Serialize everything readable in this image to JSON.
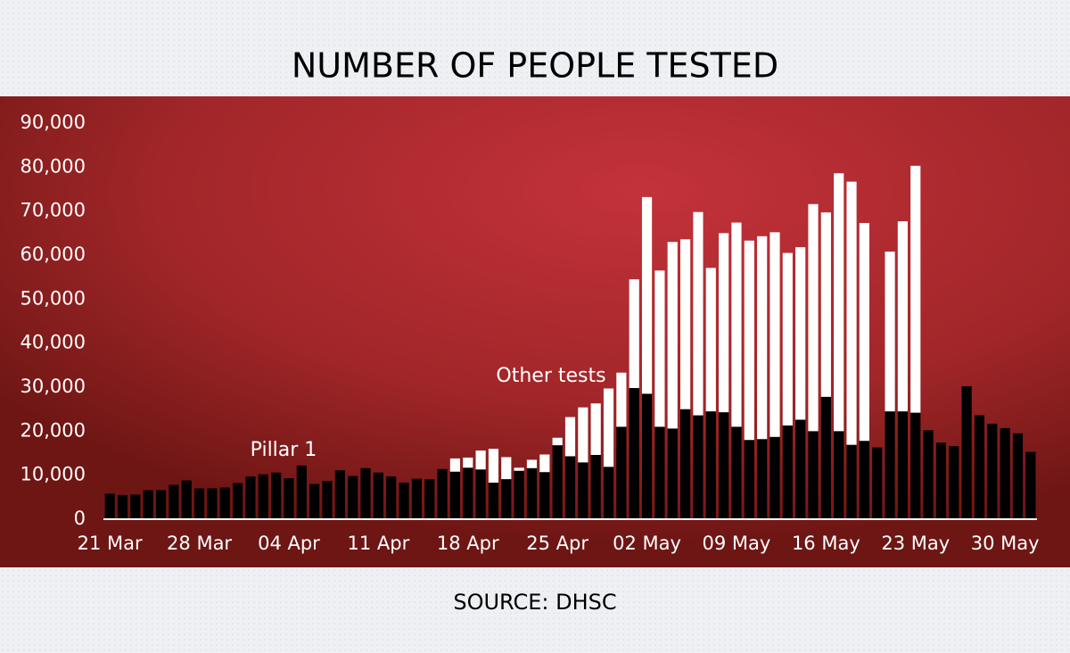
{
  "chart_data": {
    "type": "stacked_bar",
    "title": "NUMBER OF PEOPLE TESTED",
    "source": "SOURCE: DHSC",
    "categories": [
      "21 Mar",
      null,
      null,
      null,
      null,
      null,
      null,
      "28 Mar",
      null,
      null,
      null,
      null,
      null,
      null,
      "04 Apr",
      null,
      null,
      null,
      null,
      null,
      null,
      "11 Apr",
      null,
      null,
      null,
      null,
      null,
      null,
      "18 Apr",
      null,
      null,
      null,
      null,
      null,
      null,
      "25 Apr",
      null,
      null,
      null,
      null,
      null,
      null,
      "02 May",
      null,
      null,
      null,
      null,
      null,
      null,
      "09 May",
      null,
      null,
      null,
      null,
      null,
      null,
      "16 May",
      null,
      null,
      null,
      null,
      null,
      null,
      "23 May",
      null,
      null,
      null,
      null,
      null,
      null,
      "30 May",
      null,
      null
    ],
    "series": [
      {
        "name": "Pillar 1",
        "color": "#000000",
        "values": [
          5800,
          5500,
          5600,
          6600,
          6600,
          7800,
          8800,
          7000,
          7000,
          7200,
          8200,
          9700,
          10200,
          10600,
          9300,
          12200,
          8000,
          8700,
          11100,
          9800,
          11600,
          10600,
          9700,
          8300,
          9200,
          9100,
          11400,
          10800,
          11700,
          11300,
          8300,
          9100,
          11000,
          11600,
          10700,
          16800,
          14300,
          12900,
          14600,
          11900,
          21000,
          29800,
          28500,
          21000,
          20600,
          25000,
          23600,
          24500,
          24300,
          21000,
          18000,
          18200,
          18700,
          21300,
          22600,
          20000,
          27800,
          20000,
          16900,
          17800,
          16300,
          24500,
          24500,
          24200,
          20200,
          17400,
          16600,
          30200,
          23600,
          21700,
          20700,
          19500,
          15300
        ]
      },
      {
        "name": "Other tests",
        "color": "#ffffff",
        "values": [
          null,
          null,
          null,
          null,
          null,
          null,
          null,
          null,
          null,
          null,
          null,
          null,
          null,
          null,
          null,
          null,
          null,
          null,
          null,
          null,
          null,
          null,
          null,
          null,
          null,
          null,
          null,
          3000,
          2300,
          4300,
          7700,
          5000,
          700,
          1900,
          4000,
          1700,
          8900,
          12500,
          11700,
          17800,
          12300,
          24700,
          44700,
          35500,
          42400,
          38600,
          46200,
          32600,
          40700,
          46400,
          45300,
          46100,
          46500,
          39200,
          39200,
          51600,
          41900,
          58600,
          59800,
          49500,
          null,
          36300,
          43200,
          56100,
          null,
          null,
          null,
          null,
          null,
          null,
          null,
          null,
          null
        ]
      }
    ],
    "ylim": [
      0,
      90000
    ],
    "yticks": [
      0,
      {
        "value": 10000,
        "label": "10,000"
      },
      {
        "value": 20000,
        "label": "20,000"
      },
      {
        "value": 30000,
        "label": "30,000"
      },
      {
        "value": 40000,
        "label": "40,000"
      },
      {
        "value": 50000,
        "label": "50,000"
      },
      {
        "value": 60000,
        "label": "60,000"
      },
      {
        "value": 70000,
        "label": "70,000"
      },
      {
        "value": 80000,
        "label": "80,000"
      },
      {
        "value": 90000,
        "label": "90,000"
      }
    ],
    "grid": false
  }
}
